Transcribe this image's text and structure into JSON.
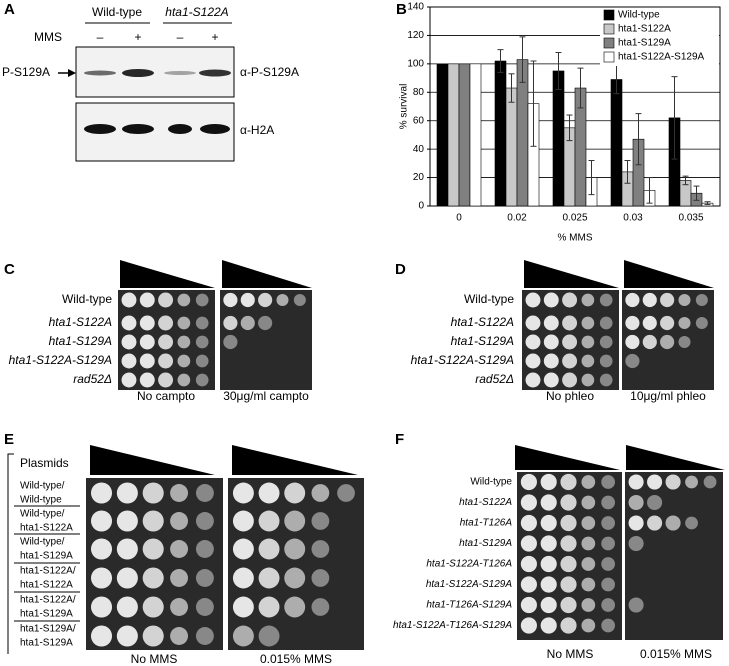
{
  "panel_a": {
    "label": "A",
    "strains": [
      "Wild-type",
      "hta1-S122A"
    ],
    "treatment": "MMS",
    "signs": [
      "–",
      "+",
      "–",
      "+"
    ],
    "band": "P-S129A",
    "antibodies": [
      "α-P-S129A",
      "α-H2A"
    ]
  },
  "chart_data": {
    "type": "bar",
    "panel_label": "B",
    "x_label": "% MMS",
    "y_label": "% survival",
    "categories": [
      "0",
      "0.02",
      "0.025",
      "0.03",
      "0.035"
    ],
    "series": [
      {
        "name": "Wild-type",
        "color": "#000000",
        "values": [
          100,
          102,
          95,
          89,
          62
        ],
        "errors": [
          null,
          8,
          13,
          10,
          29
        ]
      },
      {
        "name": "hta1-S122A",
        "color": "#c8c8c8",
        "values": [
          100,
          83,
          55,
          24,
          18
        ],
        "errors": [
          null,
          10,
          9,
          8,
          3
        ]
      },
      {
        "name": "hta1-S129A",
        "color": "#808080",
        "values": [
          100,
          103,
          83,
          47,
          9
        ],
        "errors": [
          null,
          16,
          14,
          18,
          5
        ]
      },
      {
        "name": "hta1-S122A-S129A",
        "color": "#ffffff",
        "values": [
          100,
          72,
          20,
          11,
          2
        ],
        "errors": [
          null,
          30,
          12,
          9,
          1
        ]
      }
    ],
    "ylim": [
      0,
      140
    ],
    "yticks": [
      0,
      20,
      40,
      60,
      80,
      100,
      120,
      140
    ],
    "grid": true,
    "legend": "top-right"
  },
  "panel_c": {
    "label": "C",
    "strains": [
      "Wild-type",
      "hta1-S122A",
      "hta1-S129A",
      "hta1-S122A-S129A",
      "rad52Δ"
    ],
    "conditions": [
      "No campto",
      "30μg/ml campto"
    ]
  },
  "panel_d": {
    "label": "D",
    "strains": [
      "Wild-type",
      "hta1-S122A",
      "hta1-S129A",
      "hta1-S122A-S129A",
      "rad52Δ"
    ],
    "conditions": [
      "No phleo",
      "10μg/ml phleo"
    ]
  },
  "panel_e": {
    "label": "E",
    "header": "Plasmids",
    "strains": [
      [
        "Wild-type/",
        "Wild-type"
      ],
      [
        "Wild-type/",
        "hta1-S122A"
      ],
      [
        "Wild-type/",
        "hta1-S129A"
      ],
      [
        "hta1-S122A/",
        "hta1-S122A"
      ],
      [
        "hta1-S122A/",
        "hta1-S129A"
      ],
      [
        "hta1-S129A/",
        "hta1-S129A"
      ]
    ],
    "conditions": [
      "No MMS",
      "0.015% MMS"
    ]
  },
  "panel_f": {
    "label": "F",
    "strains": [
      "Wild-type",
      "hta1-S122A",
      "hta1-T126A",
      "hta1-S129A",
      "hta1-S122A-T126A",
      "hta1-S122A-S129A",
      "hta1-T126A-S129A",
      "hta1-S122A-T126A-S129A"
    ],
    "conditions": [
      "No MMS",
      "0.015% MMS"
    ]
  }
}
